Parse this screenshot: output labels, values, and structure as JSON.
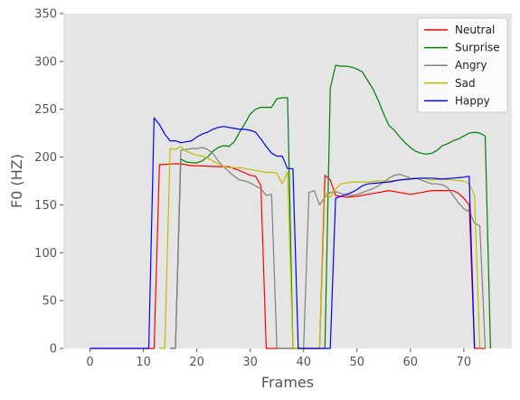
{
  "chart_data": {
    "type": "line",
    "xlabel": "Frames",
    "ylabel": "F0 (HZ)",
    "xlim": [
      -5,
      79
    ],
    "ylim": [
      0,
      350
    ],
    "xticks": [
      0,
      10,
      20,
      30,
      40,
      50,
      60,
      70
    ],
    "yticks": [
      0,
      50,
      100,
      150,
      200,
      250,
      300,
      350
    ],
    "grid": false,
    "background": "#e5e5e5",
    "legend_position": "top-right",
    "series": [
      {
        "name": "Neutral",
        "color": "#ff0000",
        "x": [
          0,
          12,
          13,
          16,
          17,
          18,
          19,
          20,
          24,
          26,
          28,
          30,
          31,
          32,
          33,
          34,
          43,
          44,
          45,
          46,
          48,
          50,
          52,
          54,
          56,
          58,
          60,
          62,
          64,
          66,
          68,
          69,
          70,
          71,
          72,
          73,
          74
        ],
        "y": [
          0,
          0,
          192,
          193,
          193,
          192,
          191,
          191,
          190,
          190,
          186,
          181,
          180,
          170,
          0,
          0,
          0,
          181,
          176,
          160,
          158,
          159,
          161,
          163,
          165,
          163,
          161,
          163,
          165,
          165,
          165,
          162,
          157,
          150,
          0,
          0,
          0
        ]
      },
      {
        "name": "Surprise",
        "color": "#008000",
        "x": [
          15,
          16,
          17,
          18,
          19,
          20,
          21,
          22,
          23,
          24,
          25,
          26,
          27,
          28,
          29,
          30,
          31,
          32,
          33,
          34,
          35,
          36,
          37,
          38,
          39,
          44,
          45,
          46,
          47,
          48,
          49,
          50,
          51,
          52,
          53,
          54,
          55,
          56,
          57,
          58,
          59,
          60,
          61,
          62,
          63,
          64,
          65,
          66,
          67,
          68,
          69,
          70,
          71,
          72,
          73,
          74,
          75
        ],
        "y": [
          0,
          0,
          198,
          195,
          194,
          194,
          196,
          200,
          206,
          210,
          212,
          211,
          216,
          226,
          235,
          245,
          250,
          252,
          252,
          252,
          261,
          262,
          262,
          0,
          0,
          0,
          272,
          296,
          295,
          295,
          294,
          292,
          289,
          280,
          271,
          259,
          245,
          233,
          228,
          221,
          215,
          210,
          206,
          204,
          203,
          204,
          207,
          212,
          214,
          217,
          219,
          222,
          225,
          226,
          225,
          222,
          0
        ]
      },
      {
        "name": "Angry",
        "color": "#808080",
        "x": [
          15,
          16,
          17,
          18,
          19,
          20,
          21,
          22,
          23,
          24,
          25,
          26,
          27,
          28,
          29,
          30,
          31,
          32,
          33,
          34,
          35,
          40,
          41,
          42,
          43,
          44,
          45,
          46,
          47,
          48,
          49,
          50,
          51,
          52,
          53,
          54,
          55,
          56,
          57,
          58,
          59,
          60,
          61,
          62,
          63,
          64,
          65,
          66,
          67,
          68,
          69,
          70,
          71,
          72,
          73,
          74
        ],
        "y": [
          0,
          0,
          207,
          208,
          209,
          209,
          210,
          208,
          204,
          196,
          190,
          185,
          180,
          176,
          175,
          173,
          170,
          167,
          160,
          161,
          0,
          0,
          163,
          165,
          150,
          158,
          163,
          164,
          162,
          160,
          160,
          161,
          163,
          165,
          167,
          170,
          174,
          178,
          181,
          182,
          180,
          178,
          178,
          176,
          174,
          172,
          172,
          171,
          168,
          160,
          152,
          146,
          143,
          131,
          128,
          0
        ]
      },
      {
        "name": "Sad",
        "color": "#bfbf00",
        "x": [
          13,
          14,
          15,
          16,
          17,
          18,
          19,
          20,
          21,
          22,
          23,
          24,
          25,
          26,
          27,
          28,
          29,
          30,
          31,
          32,
          33,
          34,
          35,
          36,
          37,
          38,
          39,
          43,
          44,
          45,
          46,
          47,
          48,
          49,
          50,
          52,
          54,
          56,
          58,
          60,
          62,
          64,
          66,
          68,
          70,
          71,
          72,
          73
        ],
        "y": [
          0,
          0,
          209,
          208,
          211,
          206,
          204,
          202,
          201,
          199,
          196,
          193,
          190,
          189,
          189,
          189,
          188,
          187,
          186,
          185,
          184,
          184,
          183,
          172,
          185,
          0,
          0,
          0,
          163,
          158,
          167,
          172,
          173,
          174,
          174,
          174,
          175,
          175,
          176,
          178,
          178,
          176,
          177,
          176,
          175,
          172,
          160,
          0
        ]
      },
      {
        "name": "Happy",
        "color": "#0000ff",
        "x": [
          0,
          11,
          12,
          13,
          14,
          15,
          16,
          17,
          18,
          19,
          20,
          21,
          22,
          23,
          24,
          25,
          26,
          27,
          28,
          29,
          30,
          31,
          32,
          33,
          34,
          35,
          36,
          37,
          38,
          39,
          45,
          46,
          47,
          48,
          49,
          50,
          51,
          52,
          54,
          56,
          58,
          60,
          62,
          64,
          66,
          68,
          70,
          71,
          72
        ],
        "y": [
          0,
          0,
          241,
          234,
          224,
          217,
          217,
          215,
          216,
          217,
          221,
          224,
          226,
          229,
          231,
          232,
          231,
          230,
          229,
          229,
          228,
          226,
          219,
          211,
          204,
          201,
          201,
          188,
          188,
          0,
          0,
          157,
          159,
          161,
          163,
          166,
          170,
          172,
          173,
          174,
          176,
          177,
          178,
          178,
          177,
          178,
          179,
          180,
          0
        ]
      }
    ]
  }
}
